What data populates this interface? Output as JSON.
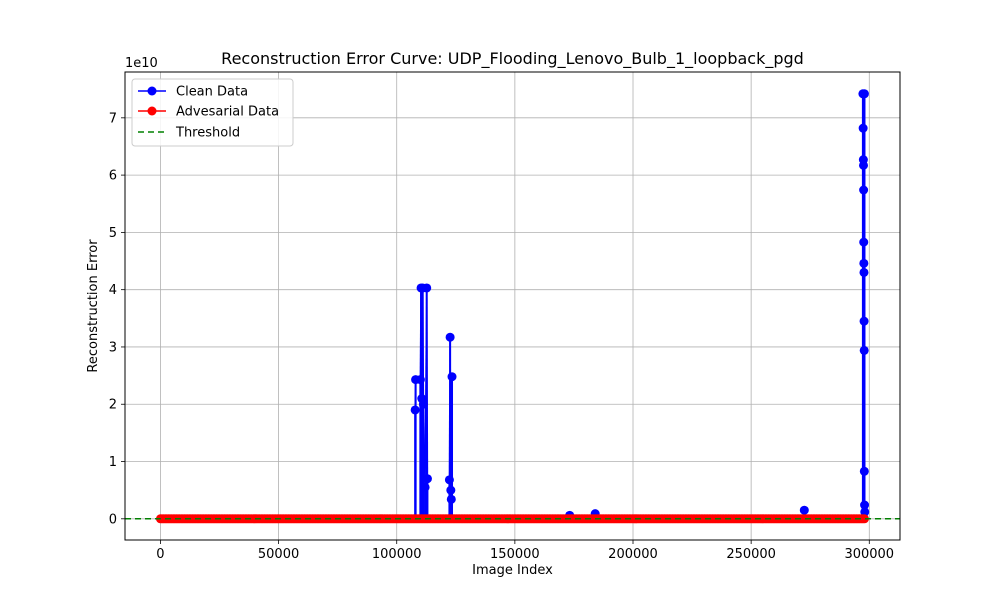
{
  "chart_data": {
    "type": "line",
    "title": "Reconstruction Error Curve: UDP_Flooding_Lenovo_Bulb_1_loopback_pgd",
    "xlabel": "Image Index",
    "ylabel": "Reconstruction Error",
    "y_offset_text": "1e10",
    "y_scale_exponent": 10,
    "xlim": [
      -15000,
      313000
    ],
    "ylim": [
      -0.37,
      7.8
    ],
    "x_ticks": [
      0,
      50000,
      100000,
      150000,
      200000,
      250000,
      300000
    ],
    "x_tick_labels": [
      "0",
      "50000",
      "100000",
      "150000",
      "200000",
      "250000",
      "300000"
    ],
    "y_ticks": [
      0,
      1,
      2,
      3,
      4,
      5,
      6,
      7
    ],
    "y_tick_labels": [
      "0",
      "1",
      "2",
      "3",
      "4",
      "5",
      "6",
      "7"
    ],
    "grid": true,
    "legend_position": "top-left",
    "series": [
      {
        "name": "Clean Data",
        "color": "#0000ff",
        "marker": "circle",
        "spikes": [
          {
            "x": 107800,
            "y": 1.9
          },
          {
            "x": 108000,
            "y": 2.43
          },
          {
            "x": 110000,
            "y": 2.43
          },
          {
            "x": 110300,
            "y": 4.03
          },
          {
            "x": 110600,
            "y": 2.1
          },
          {
            "x": 111000,
            "y": 4.03
          },
          {
            "x": 111300,
            "y": 2.0
          },
          {
            "x": 112000,
            "y": 0.55
          },
          {
            "x": 112700,
            "y": 4.03
          },
          {
            "x": 113000,
            "y": 0.7
          },
          {
            "x": 122300,
            "y": 0.68
          },
          {
            "x": 122600,
            "y": 3.17
          },
          {
            "x": 122900,
            "y": 0.5
          },
          {
            "x": 123100,
            "y": 0.34
          },
          {
            "x": 123400,
            "y": 2.48
          },
          {
            "x": 173200,
            "y": 0.06
          },
          {
            "x": 184000,
            "y": 0.09
          },
          {
            "x": 272500,
            "y": 0.15
          },
          {
            "x": 297300,
            "y": 7.42
          },
          {
            "x": 297400,
            "y": 6.82
          },
          {
            "x": 297500,
            "y": 6.27
          },
          {
            "x": 297550,
            "y": 6.17
          },
          {
            "x": 297600,
            "y": 5.74
          },
          {
            "x": 297650,
            "y": 4.83
          },
          {
            "x": 297700,
            "y": 4.46
          },
          {
            "x": 297750,
            "y": 4.3
          },
          {
            "x": 297800,
            "y": 3.45
          },
          {
            "x": 297850,
            "y": 2.94
          },
          {
            "x": 297900,
            "y": 0.83
          },
          {
            "x": 297950,
            "y": 7.42
          },
          {
            "x": 298000,
            "y": 0.24
          },
          {
            "x": 298100,
            "y": 0.12
          }
        ]
      },
      {
        "name": "Advesarial Data",
        "color": "#ff0000",
        "marker": "circle",
        "x_range": [
          0,
          298500
        ],
        "y_value": 0
      },
      {
        "name": "Threshold",
        "color": "#008000",
        "line_style": "dashed",
        "y_value": 0
      }
    ]
  }
}
